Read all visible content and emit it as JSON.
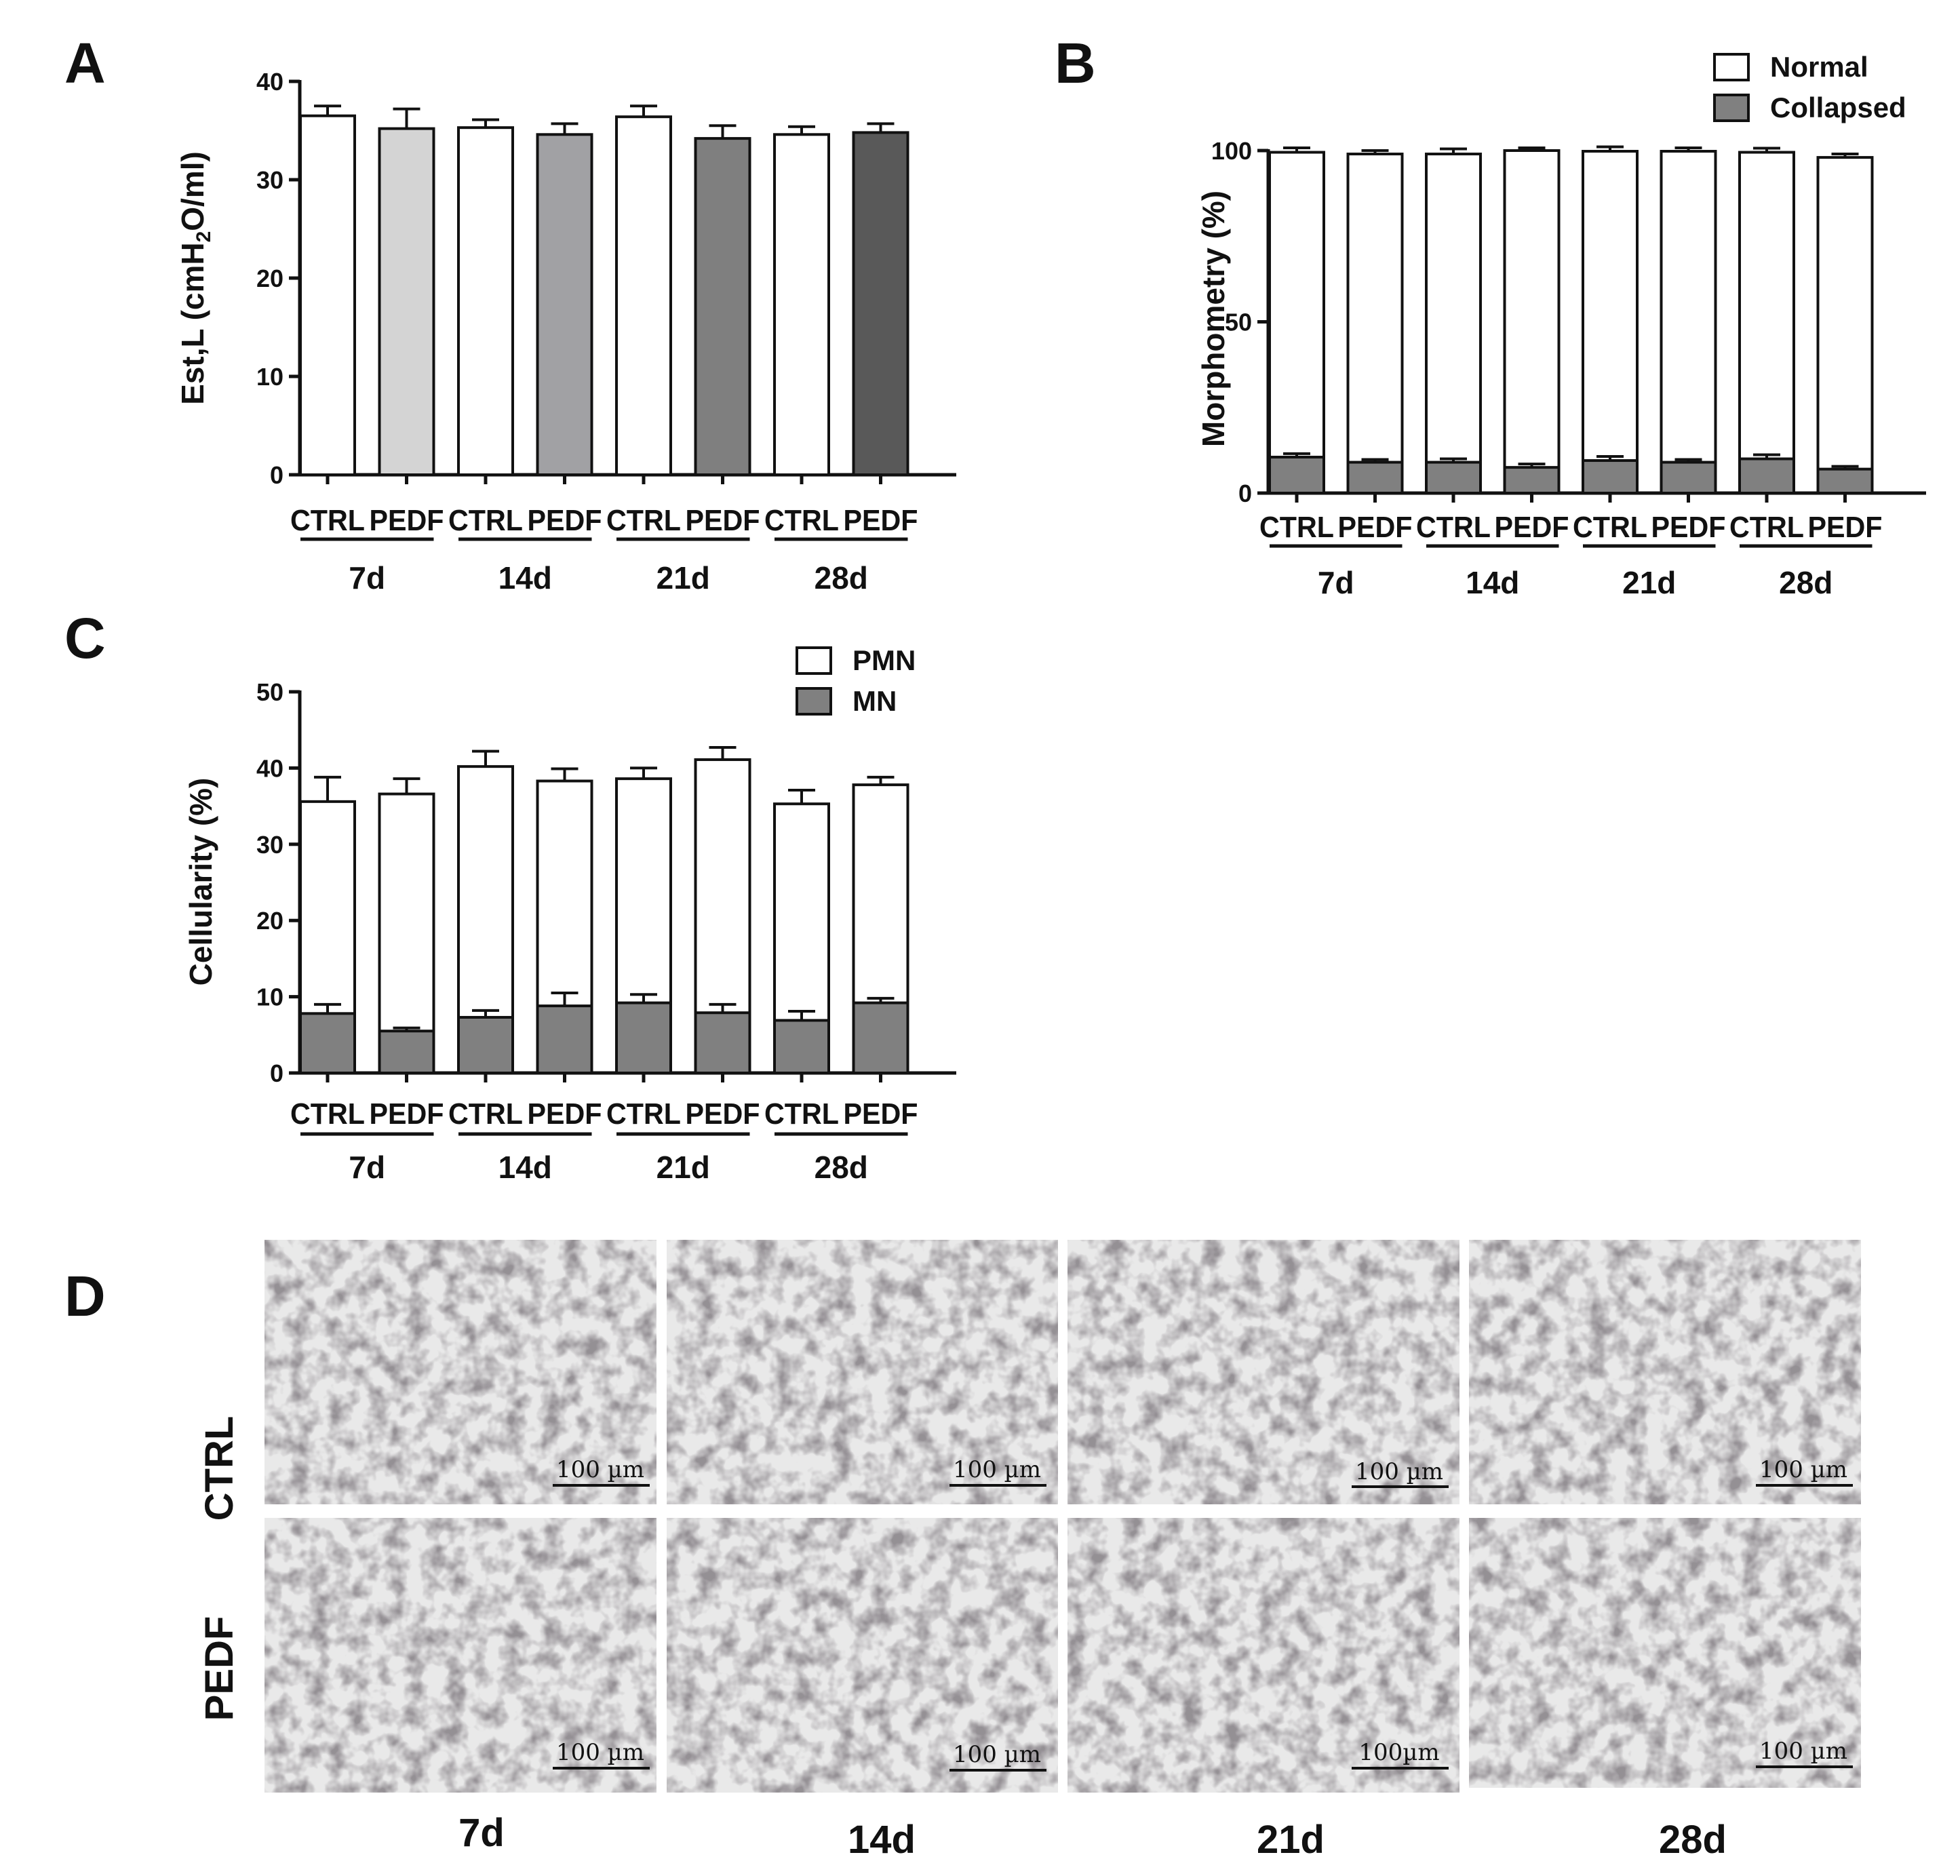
{
  "panels": {
    "A": {
      "letter": "A"
    },
    "B": {
      "letter": "B"
    },
    "C": {
      "letter": "C"
    },
    "D": {
      "letter": "D"
    }
  },
  "colors": {
    "axis": "#111111",
    "normal": "#ffffff",
    "collapsed": "#808080",
    "mn": "#808080",
    "pedf": [
      "#d4d4d4",
      "#a1a1a4",
      "#7f7f7f",
      "#595959"
    ]
  },
  "chart_data": [
    {
      "id": "A",
      "type": "bar",
      "title": "",
      "ylabel_main": "Est,L (cmH",
      "ylabel_sub": "2",
      "ylabel_end": "O/ml)",
      "ylim": [
        0,
        40
      ],
      "yticks": [
        "0",
        "10",
        "20",
        "30",
        "40"
      ],
      "categories": [
        "CTRL",
        "PEDF",
        "CTRL",
        "PEDF",
        "CTRL",
        "PEDF",
        "CTRL",
        "PEDF"
      ],
      "groups": [
        "7d",
        "14d",
        "21d",
        "28d"
      ],
      "values": [
        36.5,
        35.2,
        35.3,
        34.6,
        36.4,
        34.2,
        34.6,
        34.8
      ],
      "errors": [
        1.0,
        2.0,
        0.8,
        1.1,
        1.1,
        1.3,
        0.8,
        0.9
      ]
    },
    {
      "id": "B",
      "type": "bar",
      "stacked": true,
      "title": "",
      "ylabel": "Morphometry (%)",
      "ylim": [
        0,
        100
      ],
      "yticks": [
        "0",
        "50",
        "100"
      ],
      "categories": [
        "CTRL",
        "PEDF",
        "CTRL",
        "PEDF",
        "CTRL",
        "PEDF",
        "CTRL",
        "PEDF"
      ],
      "groups": [
        "7d",
        "14d",
        "21d",
        "28d"
      ],
      "legend": [
        "Normal",
        "Collapsed"
      ],
      "legend_position": "top-right",
      "series": [
        {
          "name": "Collapsed",
          "values": [
            10.5,
            9.0,
            9.0,
            7.5,
            9.5,
            9.0,
            10.0,
            7.0
          ],
          "errors": [
            1.0,
            0.8,
            1.0,
            1.0,
            1.2,
            0.8,
            1.2,
            0.8
          ]
        },
        {
          "name": "Normal",
          "totals": [
            99.5,
            99.0,
            99.0,
            100.0,
            99.8,
            99.8,
            99.5,
            98.0
          ],
          "errors": [
            1.3,
            1.0,
            1.5,
            0.8,
            1.3,
            1.0,
            1.2,
            1.0
          ]
        }
      ]
    },
    {
      "id": "C",
      "type": "bar",
      "stacked": true,
      "title": "",
      "ylabel": "Cellularity (%)",
      "ylim": [
        0,
        50
      ],
      "yticks": [
        "0",
        "10",
        "20",
        "30",
        "40",
        "50"
      ],
      "categories": [
        "CTRL",
        "PEDF",
        "CTRL",
        "PEDF",
        "CTRL",
        "PEDF",
        "CTRL",
        "PEDF"
      ],
      "groups": [
        "7d",
        "14d",
        "21d",
        "28d"
      ],
      "legend": [
        "PMN",
        "MN"
      ],
      "legend_position": "top-right",
      "series": [
        {
          "name": "MN",
          "values": [
            7.8,
            5.5,
            7.3,
            8.8,
            9.2,
            7.9,
            6.9,
            9.2
          ],
          "errors": [
            1.2,
            0.4,
            0.9,
            1.7,
            1.1,
            1.1,
            1.2,
            0.6
          ]
        },
        {
          "name": "PMN",
          "totals": [
            35.6,
            36.6,
            40.2,
            38.3,
            38.6,
            41.1,
            35.3,
            37.8
          ],
          "errors": [
            3.2,
            2.0,
            2.0,
            1.6,
            1.4,
            1.6,
            1.8,
            1.0
          ]
        }
      ]
    }
  ],
  "micrographs": {
    "rows": [
      "CTRL",
      "PEDF"
    ],
    "columns": [
      "7d",
      "14d",
      "21d",
      "28d"
    ],
    "scale_bars": [
      [
        "100 µm",
        "100 µm",
        "100 µm",
        "100 µm"
      ],
      [
        "100 µm",
        "100 µm",
        "100µm",
        "100 µm"
      ]
    ]
  }
}
